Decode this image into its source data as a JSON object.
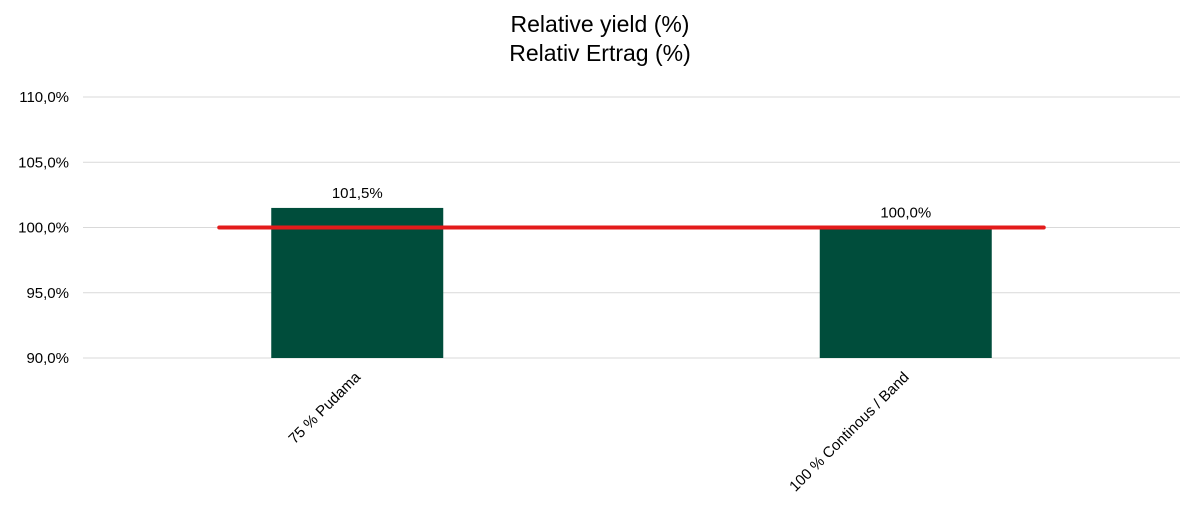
{
  "chart_data": {
    "type": "bar",
    "title_lines": [
      "Relative yield (%)",
      "Relativ Ertrag (%)"
    ],
    "categories": [
      "75 % Pudama",
      "100 % Continous / Band"
    ],
    "values": [
      101.5,
      100.0
    ],
    "data_labels": [
      "101,5%",
      "100,0%"
    ],
    "ylim": [
      90,
      110
    ],
    "yticks": [
      90,
      95,
      100,
      105,
      110
    ],
    "ytick_labels": [
      "90,0%",
      "95,0%",
      "100,0%",
      "105,0%",
      "110,0%"
    ],
    "reference_line": {
      "value": 100.0,
      "color": "#e31b1b"
    },
    "bar_color": "#004d3b",
    "grid": true,
    "legend": false
  }
}
